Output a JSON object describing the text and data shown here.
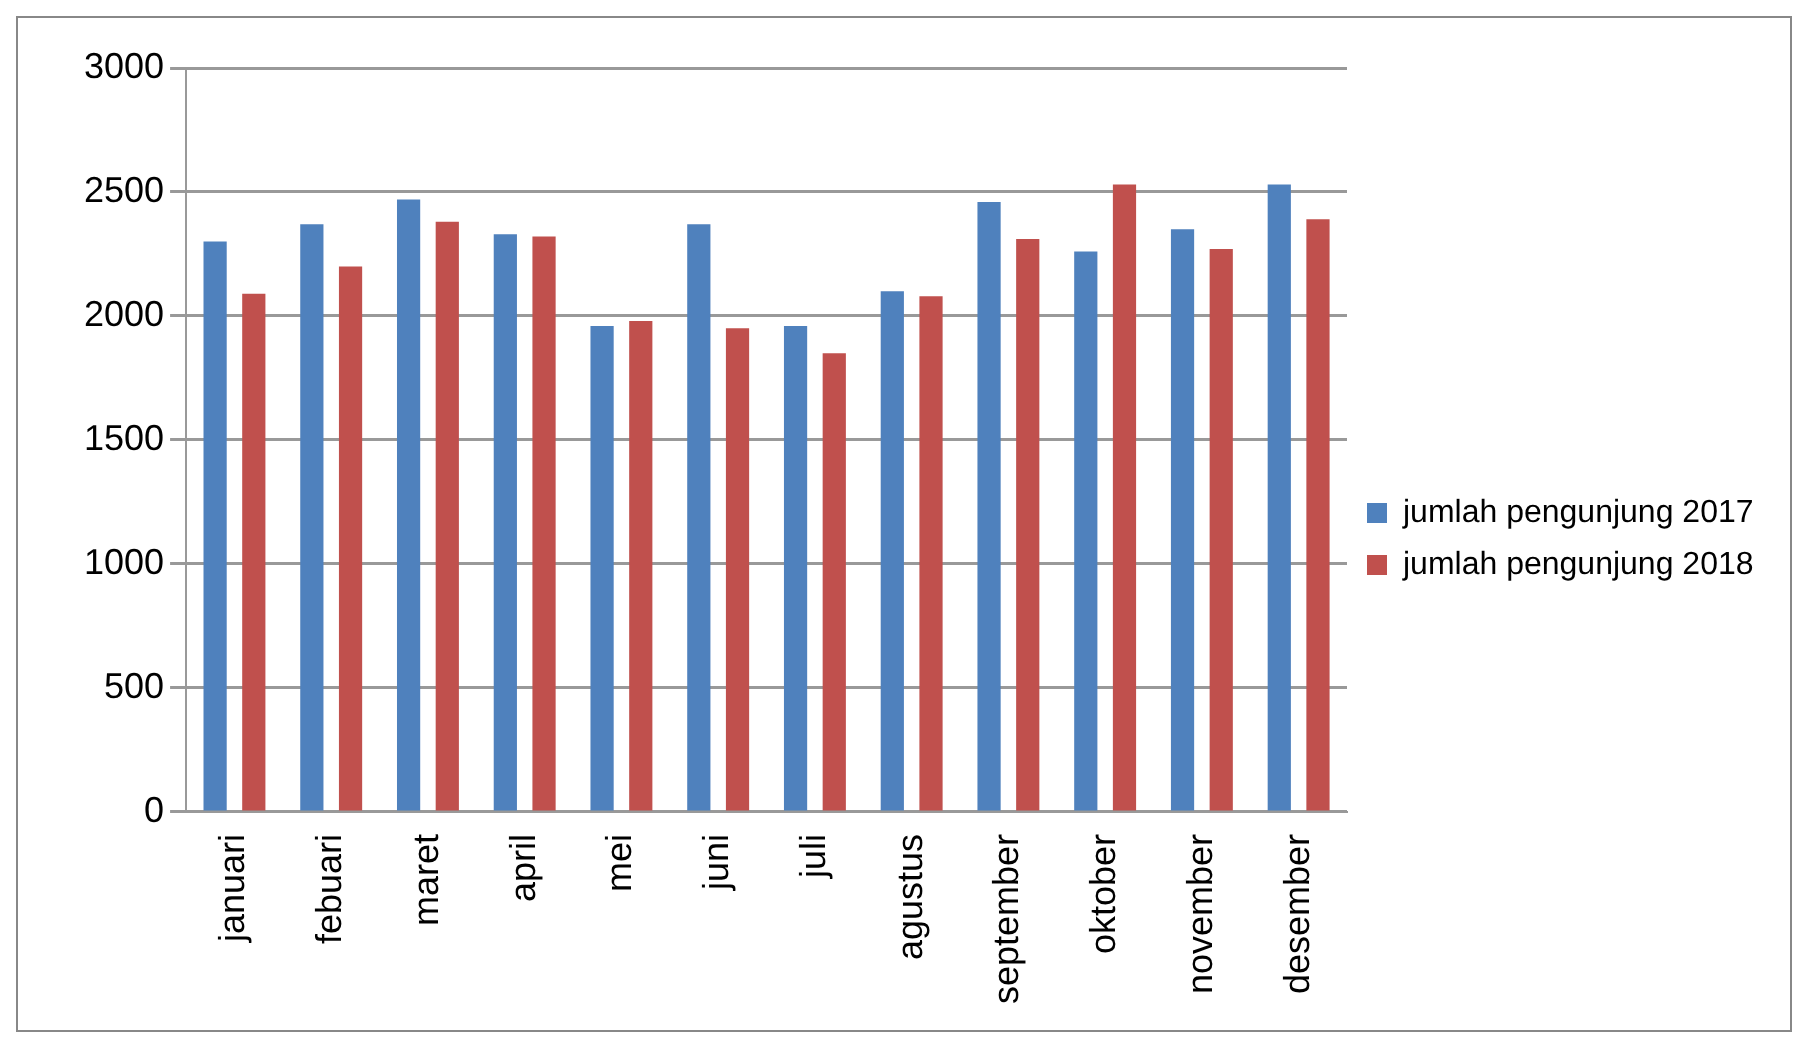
{
  "chart_data": {
    "type": "bar",
    "categories": [
      "januari",
      "febuari",
      "maret",
      "april",
      "mei",
      "juni",
      "juli",
      "agustus",
      "september",
      "oktober",
      "november",
      "desember"
    ],
    "series": [
      {
        "name": "jumlah pengunjung 2017",
        "color": "#4f81bd",
        "values": [
          2300,
          2370,
          2470,
          2330,
          1960,
          2370,
          1960,
          2100,
          2460,
          2260,
          2350,
          2530
        ]
      },
      {
        "name": "jumlah pengunjung 2018",
        "color": "#c0504d",
        "values": [
          2090,
          2200,
          2380,
          2320,
          1980,
          1950,
          1850,
          2080,
          2310,
          2530,
          2270,
          2390
        ]
      }
    ],
    "ylim": [
      0,
      3000
    ],
    "yticks": [
      0,
      500,
      1000,
      1500,
      2000,
      2500,
      3000
    ],
    "grid": "y",
    "legend": "right"
  }
}
